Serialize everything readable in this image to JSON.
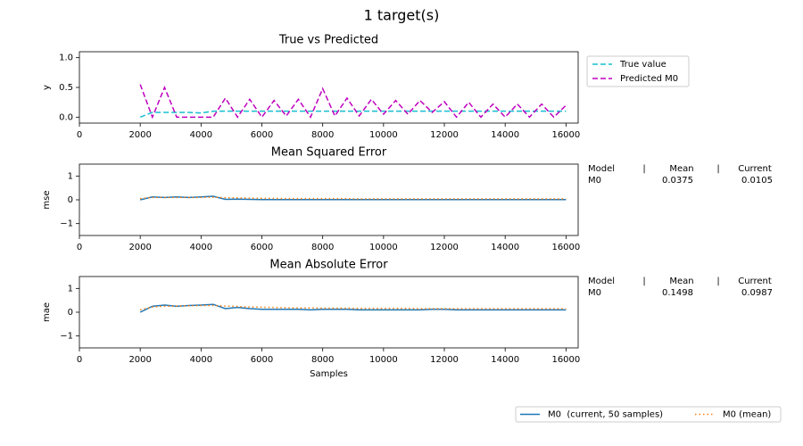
{
  "title": "1 target(s)",
  "chart_data": [
    {
      "type": "line",
      "title": "True vs Predicted",
      "ylabel": "y",
      "x": [
        2000,
        2400,
        2800,
        3200,
        3600,
        4000,
        4400,
        4800,
        5200,
        5600,
        6000,
        6400,
        6800,
        7200,
        7600,
        8000,
        8400,
        8800,
        9200,
        9600,
        10000,
        10400,
        10800,
        11200,
        11600,
        12000,
        12400,
        12800,
        13200,
        13600,
        14000,
        14400,
        14800,
        15200,
        15600,
        16000
      ],
      "xlim": [
        0,
        16400
      ],
      "xticks": [
        0,
        2000,
        4000,
        6000,
        8000,
        10000,
        12000,
        14000,
        16000
      ],
      "ylim": [
        -0.1,
        1.1
      ],
      "yticks": [
        {
          "value": 0,
          "label": "0.0"
        },
        {
          "value": 0.5,
          "label": "0.5"
        },
        {
          "value": 1,
          "label": "1.0"
        }
      ],
      "legend": true,
      "series": [
        {
          "name": "True value",
          "color": "#17becf",
          "style": "dashed",
          "values": [
            0.0,
            0.08,
            0.08,
            0.08,
            0.08,
            0.07,
            0.1,
            0.1,
            0.1,
            0.1,
            0.1,
            0.1,
            0.1,
            0.1,
            0.1,
            0.1,
            0.1,
            0.1,
            0.1,
            0.1,
            0.1,
            0.1,
            0.1,
            0.1,
            0.1,
            0.1,
            0.1,
            0.1,
            0.1,
            0.1,
            0.1,
            0.1,
            0.1,
            0.1,
            0.1,
            0.1
          ]
        },
        {
          "name": "Predicted M0",
          "color": "#bf00bf",
          "style": "dashed",
          "values": [
            0.55,
            0.0,
            0.5,
            0.0,
            0.0,
            0.0,
            0.0,
            0.32,
            0.0,
            0.3,
            0.0,
            0.28,
            0.02,
            0.3,
            0.0,
            0.48,
            0.02,
            0.32,
            0.02,
            0.3,
            0.05,
            0.28,
            0.05,
            0.28,
            0.08,
            0.26,
            0.0,
            0.25,
            0.0,
            0.22,
            0.0,
            0.22,
            0.0,
            0.22,
            0.0,
            0.2
          ]
        }
      ]
    },
    {
      "type": "line",
      "title": "Mean Squared Error",
      "ylabel": "mse",
      "x": [
        2000,
        2400,
        2800,
        3200,
        3600,
        4000,
        4400,
        4800,
        5200,
        5600,
        6000,
        6400,
        6800,
        7200,
        7600,
        8000,
        8400,
        8800,
        9200,
        9600,
        10000,
        10400,
        10800,
        11200,
        11600,
        12000,
        12400,
        12800,
        13200,
        13600,
        14000,
        14400,
        14800,
        15200,
        15600,
        16000
      ],
      "xlim": [
        0,
        16400
      ],
      "xticks": [
        0,
        2000,
        4000,
        6000,
        8000,
        10000,
        12000,
        14000,
        16000
      ],
      "ylim": [
        -1.5,
        1.5
      ],
      "yticks": [
        {
          "value": -1,
          "label": "−1"
        },
        0,
        1
      ],
      "series": [
        {
          "name": "M0  (current, 50 samples)",
          "color": "#1f77b4",
          "style": "solid",
          "values": [
            0.0,
            0.12,
            0.1,
            0.12,
            0.1,
            0.12,
            0.15,
            0.02,
            0.03,
            0.02,
            0.01,
            0.01,
            0.01,
            0.01,
            0.01,
            0.01,
            0.01,
            0.01,
            0.01,
            0.01,
            0.01,
            0.01,
            0.01,
            0.01,
            0.01,
            0.01,
            0.01,
            0.01,
            0.01,
            0.01,
            0.01,
            0.01,
            0.01,
            0.01,
            0.01,
            0.01
          ]
        },
        {
          "name": "M0 (mean)",
          "color": "#ff7f0e",
          "style": "dotted",
          "values": [
            0.05,
            0.1,
            0.1,
            0.1,
            0.1,
            0.1,
            0.11,
            0.09,
            0.08,
            0.07,
            0.06,
            0.06,
            0.05,
            0.05,
            0.05,
            0.05,
            0.05,
            0.05,
            0.04,
            0.04,
            0.04,
            0.04,
            0.04,
            0.04,
            0.04,
            0.04,
            0.04,
            0.04,
            0.04,
            0.04,
            0.04,
            0.04,
            0.04,
            0.04,
            0.04,
            0.04
          ]
        }
      ],
      "stats": {
        "header": [
          "Model",
          "Mean",
          "Current"
        ],
        "rows": [
          [
            "M0",
            0.0375,
            0.0105
          ]
        ]
      }
    },
    {
      "type": "line",
      "title": "Mean Absolute Error",
      "ylabel": "mae",
      "xlabel": "Samples",
      "x": [
        2000,
        2400,
        2800,
        3200,
        3600,
        4000,
        4400,
        4800,
        5200,
        5600,
        6000,
        6400,
        6800,
        7200,
        7600,
        8000,
        8400,
        8800,
        9200,
        9600,
        10000,
        10400,
        10800,
        11200,
        11600,
        12000,
        12400,
        12800,
        13200,
        13600,
        14000,
        14400,
        14800,
        15200,
        15600,
        16000
      ],
      "xlim": [
        0,
        16400
      ],
      "xticks": [
        0,
        2000,
        4000,
        6000,
        8000,
        10000,
        12000,
        14000,
        16000
      ],
      "ylim": [
        -1.5,
        1.5
      ],
      "yticks": [
        {
          "value": -1,
          "label": "−1"
        },
        0,
        1
      ],
      "series": [
        {
          "name": "M0  (current, 50 samples)",
          "color": "#1f77b4",
          "style": "solid",
          "values": [
            0.0,
            0.25,
            0.3,
            0.25,
            0.28,
            0.3,
            0.33,
            0.15,
            0.2,
            0.15,
            0.12,
            0.12,
            0.12,
            0.12,
            0.1,
            0.12,
            0.12,
            0.12,
            0.1,
            0.1,
            0.1,
            0.1,
            0.1,
            0.1,
            0.12,
            0.12,
            0.1,
            0.1,
            0.1,
            0.1,
            0.1,
            0.1,
            0.1,
            0.1,
            0.1,
            0.1
          ]
        },
        {
          "name": "M0 (mean)",
          "color": "#ff7f0e",
          "style": "dotted",
          "values": [
            0.1,
            0.22,
            0.25,
            0.26,
            0.27,
            0.28,
            0.28,
            0.26,
            0.24,
            0.22,
            0.21,
            0.2,
            0.19,
            0.18,
            0.18,
            0.17,
            0.17,
            0.17,
            0.16,
            0.16,
            0.16,
            0.16,
            0.16,
            0.15,
            0.15,
            0.15,
            0.15,
            0.15,
            0.15,
            0.15,
            0.15,
            0.15,
            0.15,
            0.15,
            0.15,
            0.15
          ]
        }
      ],
      "stats": {
        "header": [
          "Model",
          "Mean",
          "Current"
        ],
        "rows": [
          [
            "M0",
            0.1498,
            0.0987
          ]
        ]
      }
    }
  ]
}
